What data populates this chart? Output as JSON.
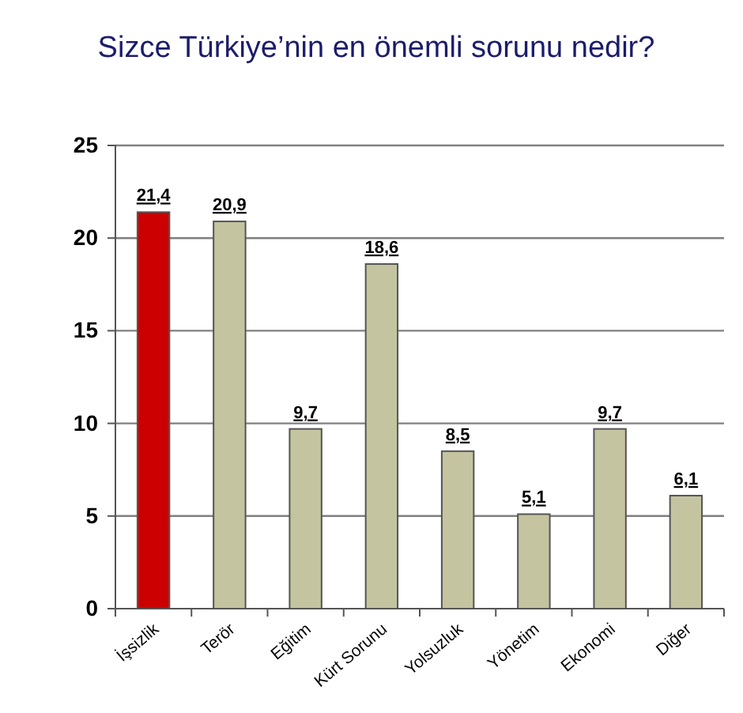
{
  "chart_data": {
    "type": "bar",
    "title": "Sizce Türkiye’nin en önemli sorunu nedir?",
    "categories": [
      "İşsizlik",
      "Terör",
      "Eğitim",
      "Kürt Sorunu",
      "Yolsuzluk",
      "Yönetim",
      "Ekonomi",
      "Diğer"
    ],
    "values": [
      21.4,
      20.9,
      9.7,
      18.6,
      8.5,
      5.1,
      9.7,
      6.1
    ],
    "value_labels": [
      "21,4",
      "20,9",
      "9,7",
      "18,6",
      "8,5",
      "5,1",
      "9,7",
      "6,1"
    ],
    "colors": [
      "#cc0000",
      "#c4c4a0",
      "#c4c4a0",
      "#c4c4a0",
      "#c4c4a0",
      "#c4c4a0",
      "#c4c4a0",
      "#c4c4a0"
    ],
    "ylim": [
      0,
      25
    ],
    "yticks": [
      0,
      5,
      10,
      15,
      20,
      25
    ],
    "grid": "y"
  }
}
